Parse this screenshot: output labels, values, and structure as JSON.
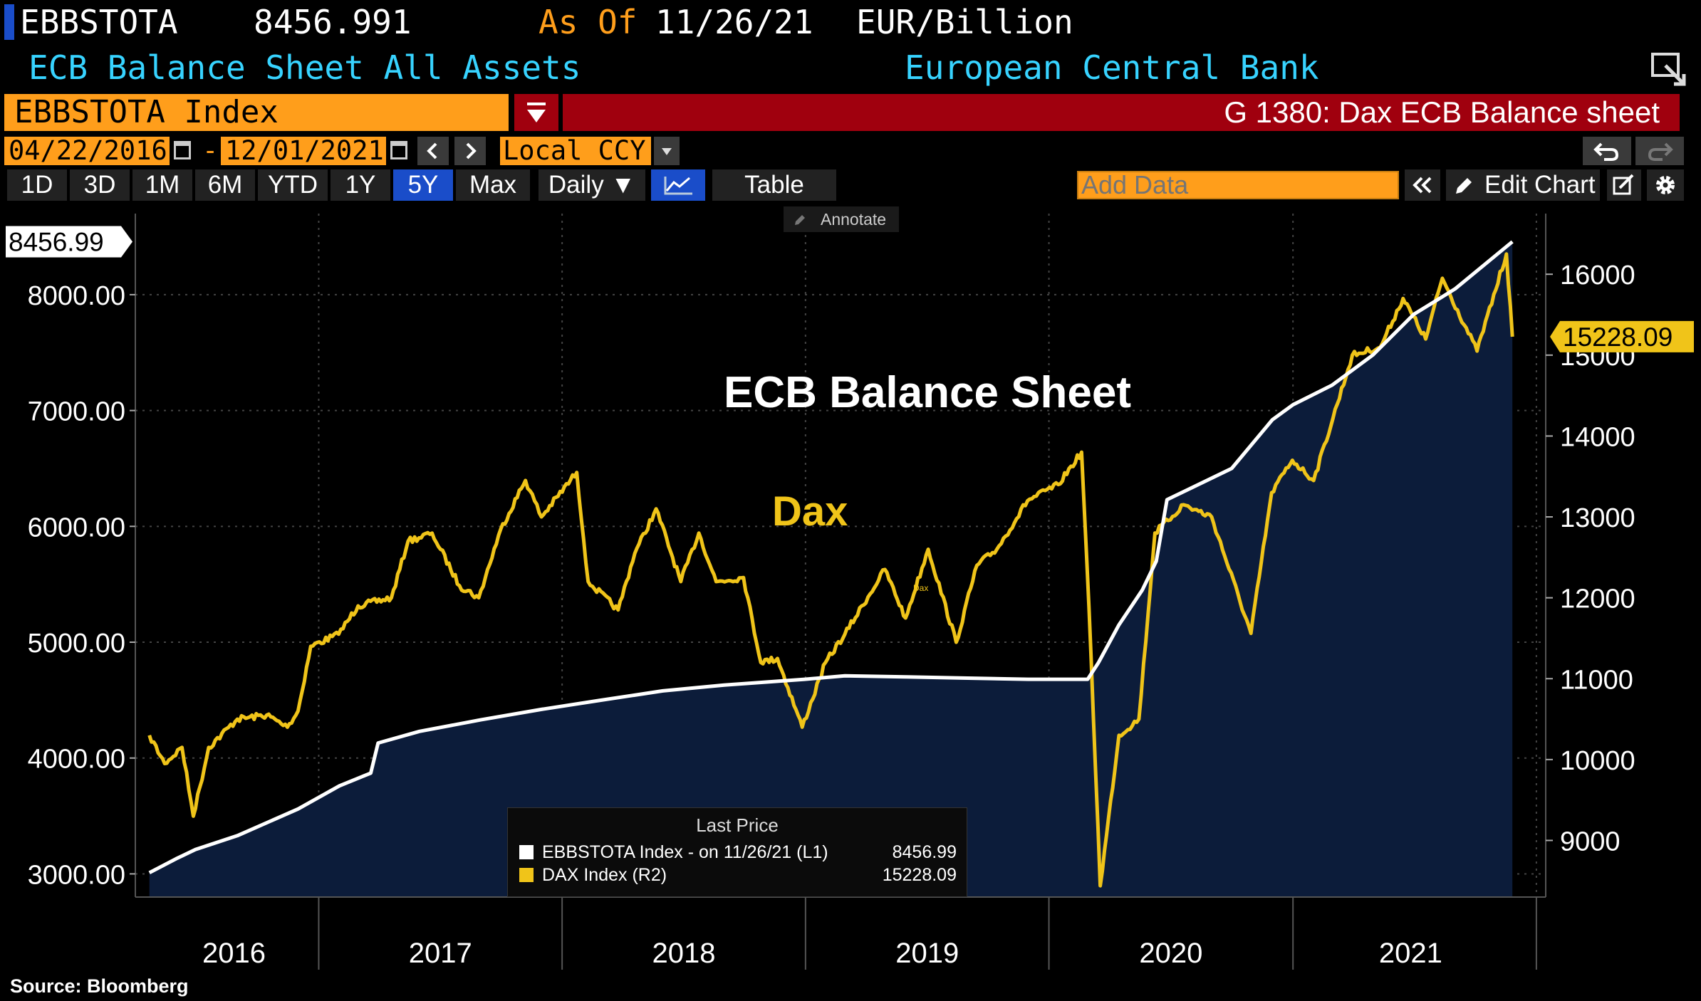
{
  "header": {
    "ticker": "EBBSTOTA",
    "last_value": "8456.991",
    "as_of_label": "As Of",
    "as_of_date": "11/26/21",
    "unit": "EUR/Billion",
    "description": "ECB Balance Sheet All Assets",
    "source_name": "European Central Bank"
  },
  "command": {
    "security": "EBBSTOTA Index",
    "chart_title": "G 1380: Dax ECB Balance sheet"
  },
  "controls": {
    "start_date": "04/22/2016",
    "end_date": "12/01/2021",
    "date_sep": "-",
    "currency": "Local CCY",
    "periods": [
      "1D",
      "3D",
      "1M",
      "6M",
      "YTD",
      "1Y",
      "5Y",
      "Max"
    ],
    "active_period": "5Y",
    "frequency": "Daily ▼",
    "table_label": "Table",
    "add_data_placeholder": "Add Data",
    "edit_chart_label": "Edit Chart",
    "annotate_label": "Annotate"
  },
  "footer": {
    "source": "Source: Bloomberg"
  },
  "colors": {
    "dax": "#f0c419",
    "ecb": "#ffffff",
    "area": "#0c1c3a",
    "accent_orange": "#ff9e1b",
    "accent_red": "#a0000e",
    "accent_cyan": "#37d3ff"
  },
  "chart_data": {
    "type": "line",
    "annotations": {
      "ecb": "ECB Balance Sheet",
      "dax": "Dax",
      "dax_small": "Dax"
    },
    "x_ticks": [
      "2016",
      "2017",
      "2018",
      "2019",
      "2020",
      "2021"
    ],
    "left_axis": {
      "ticks": [
        "3000.00",
        "4000.00",
        "5000.00",
        "6000.00",
        "7000.00",
        "8000.00"
      ],
      "range": [
        2800,
        8700
      ],
      "last_label": "8456.99"
    },
    "right_axis": {
      "ticks": [
        "9000",
        "10000",
        "11000",
        "12000",
        "13000",
        "14000",
        "15000",
        "16000"
      ],
      "range": [
        8300,
        16750
      ],
      "last_label": "15228.09"
    },
    "legend": {
      "title": "Last Price",
      "items": [
        {
          "name": "EBBSTOTA Index -  on 11/26/21  (L1)",
          "value": "8456.99"
        },
        {
          "name": "DAX Index  (R2)",
          "value": "15228.09"
        }
      ]
    },
    "series": [
      {
        "name": "EBBSTOTA Index",
        "axis": "left",
        "points": [
          [
            "2016-04-22",
            3010
          ],
          [
            "2016-06-01",
            3130
          ],
          [
            "2016-06-30",
            3210
          ],
          [
            "2016-09-01",
            3330
          ],
          [
            "2016-12-01",
            3560
          ],
          [
            "2017-02-01",
            3760
          ],
          [
            "2017-03-20",
            3870
          ],
          [
            "2017-03-31",
            4130
          ],
          [
            "2017-06-01",
            4230
          ],
          [
            "2017-09-01",
            4330
          ],
          [
            "2017-12-01",
            4420
          ],
          [
            "2018-03-01",
            4500
          ],
          [
            "2018-06-01",
            4580
          ],
          [
            "2018-09-01",
            4630
          ],
          [
            "2018-12-31",
            4680
          ],
          [
            "2019-03-01",
            4710
          ],
          [
            "2019-06-01",
            4700
          ],
          [
            "2019-09-01",
            4690
          ],
          [
            "2019-12-01",
            4680
          ],
          [
            "2020-02-28",
            4680
          ],
          [
            "2020-03-15",
            4820
          ],
          [
            "2020-04-15",
            5150
          ],
          [
            "2020-05-20",
            5450
          ],
          [
            "2020-06-10",
            5700
          ],
          [
            "2020-06-26",
            6230
          ],
          [
            "2020-08-01",
            6330
          ],
          [
            "2020-10-01",
            6500
          ],
          [
            "2020-12-01",
            6920
          ],
          [
            "2021-01-01",
            7050
          ],
          [
            "2021-03-01",
            7220
          ],
          [
            "2021-05-01",
            7480
          ],
          [
            "2021-07-01",
            7830
          ],
          [
            "2021-09-01",
            8050
          ],
          [
            "2021-11-26",
            8457
          ]
        ]
      },
      {
        "name": "DAX Index",
        "axis": "right",
        "points": [
          [
            "2016-04-22",
            10300
          ],
          [
            "2016-05-15",
            9950
          ],
          [
            "2016-06-10",
            10150
          ],
          [
            "2016-06-27",
            9300
          ],
          [
            "2016-07-20",
            10150
          ],
          [
            "2016-09-01",
            10500
          ],
          [
            "2016-10-15",
            10550
          ],
          [
            "2016-11-15",
            10400
          ],
          [
            "2016-12-01",
            10600
          ],
          [
            "2016-12-20",
            11400
          ],
          [
            "2017-01-31",
            11550
          ],
          [
            "2017-03-01",
            11900
          ],
          [
            "2017-04-20",
            12000
          ],
          [
            "2017-05-15",
            12700
          ],
          [
            "2017-06-20",
            12800
          ],
          [
            "2017-07-31",
            12150
          ],
          [
            "2017-08-29",
            12000
          ],
          [
            "2017-10-01",
            12850
          ],
          [
            "2017-11-07",
            13450
          ],
          [
            "2017-12-01",
            13000
          ],
          [
            "2018-01-23",
            13550
          ],
          [
            "2018-02-09",
            12200
          ],
          [
            "2018-03-26",
            11850
          ],
          [
            "2018-04-20",
            12550
          ],
          [
            "2018-05-22",
            13100
          ],
          [
            "2018-06-28",
            12200
          ],
          [
            "2018-07-25",
            12800
          ],
          [
            "2018-08-20",
            12200
          ],
          [
            "2018-09-30",
            12250
          ],
          [
            "2018-10-26",
            11200
          ],
          [
            "2018-11-20",
            11250
          ],
          [
            "2018-12-27",
            10400
          ],
          [
            "2019-01-31",
            11200
          ],
          [
            "2019-03-01",
            11550
          ],
          [
            "2019-04-30",
            12350
          ],
          [
            "2019-05-31",
            11750
          ],
          [
            "2019-07-04",
            12600
          ],
          [
            "2019-08-15",
            11450
          ],
          [
            "2019-09-15",
            12400
          ],
          [
            "2019-10-15",
            12600
          ],
          [
            "2019-11-30",
            13200
          ],
          [
            "2020-01-15",
            13400
          ],
          [
            "2020-02-19",
            13800
          ],
          [
            "2020-03-01",
            11900
          ],
          [
            "2020-03-18",
            8440
          ],
          [
            "2020-04-15",
            10300
          ],
          [
            "2020-05-15",
            10500
          ],
          [
            "2020-06-08",
            12800
          ],
          [
            "2020-07-21",
            13150
          ],
          [
            "2020-09-01",
            13000
          ],
          [
            "2020-10-30",
            11560
          ],
          [
            "2020-11-30",
            13300
          ],
          [
            "2020-12-31",
            13700
          ],
          [
            "2021-02-01",
            13450
          ],
          [
            "2021-03-31",
            15000
          ],
          [
            "2021-05-12",
            15100
          ],
          [
            "2021-06-15",
            15700
          ],
          [
            "2021-07-19",
            15200
          ],
          [
            "2021-08-13",
            15950
          ],
          [
            "2021-10-04",
            15050
          ],
          [
            "2021-11-17",
            16250
          ],
          [
            "2021-11-26",
            15228
          ]
        ]
      }
    ]
  }
}
